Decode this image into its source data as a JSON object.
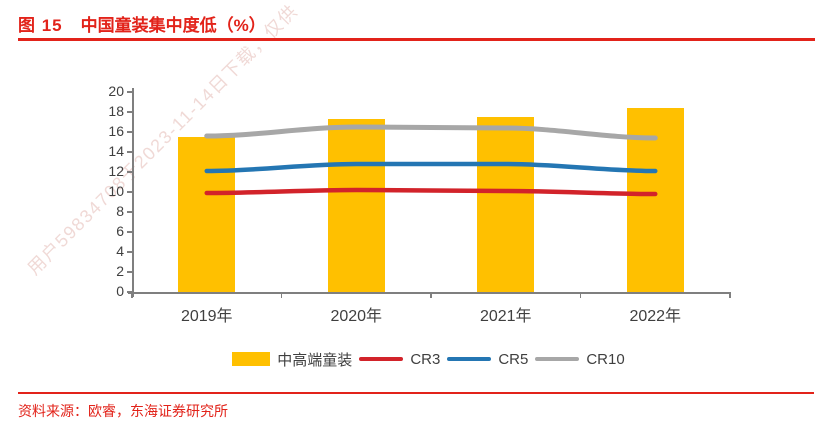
{
  "title": {
    "figure_label": "图 15",
    "text": "中国童装集中度低（%）"
  },
  "watermark_text": "用户59834708于2023-11-14日下载，仅供",
  "source_text": "资料来源：欧睿，东海证券研究所",
  "colors": {
    "accent_red": "#e2231a",
    "bar_yellow": "#ffc000",
    "cr3_red": "#d2232a",
    "cr5_blue": "#2476b3",
    "cr10_gray": "#a7a7a7",
    "axis_gray": "#7f7f7f",
    "tick_text_gray": "#3f3f3f"
  },
  "chart_data": {
    "type": "bar",
    "subtype": "bar-with-lines-combo",
    "title": "中国童装集中度低（%）",
    "categories": [
      "2019年",
      "2020年",
      "2021年",
      "2022年"
    ],
    "series": [
      {
        "name": "中高端童装",
        "type": "bar",
        "color": "#ffc000",
        "values": [
          15.5,
          17.3,
          17.5,
          18.4
        ]
      },
      {
        "name": "CR3",
        "type": "line",
        "color": "#d2232a",
        "values": [
          9.9,
          10.2,
          10.1,
          9.8
        ]
      },
      {
        "name": "CR5",
        "type": "line",
        "color": "#2476b3",
        "values": [
          12.1,
          12.8,
          12.8,
          12.1
        ]
      },
      {
        "name": "CR10",
        "type": "line",
        "color": "#a7a7a7",
        "values": [
          15.6,
          16.5,
          16.4,
          15.4
        ]
      }
    ],
    "xlabel": "",
    "ylabel": "",
    "ylim": [
      0,
      20
    ],
    "ytick_step": 2,
    "yticks": [
      0,
      2,
      4,
      6,
      8,
      10,
      12,
      14,
      16,
      18,
      20
    ],
    "grid": "off",
    "legend_position": "bottom"
  }
}
